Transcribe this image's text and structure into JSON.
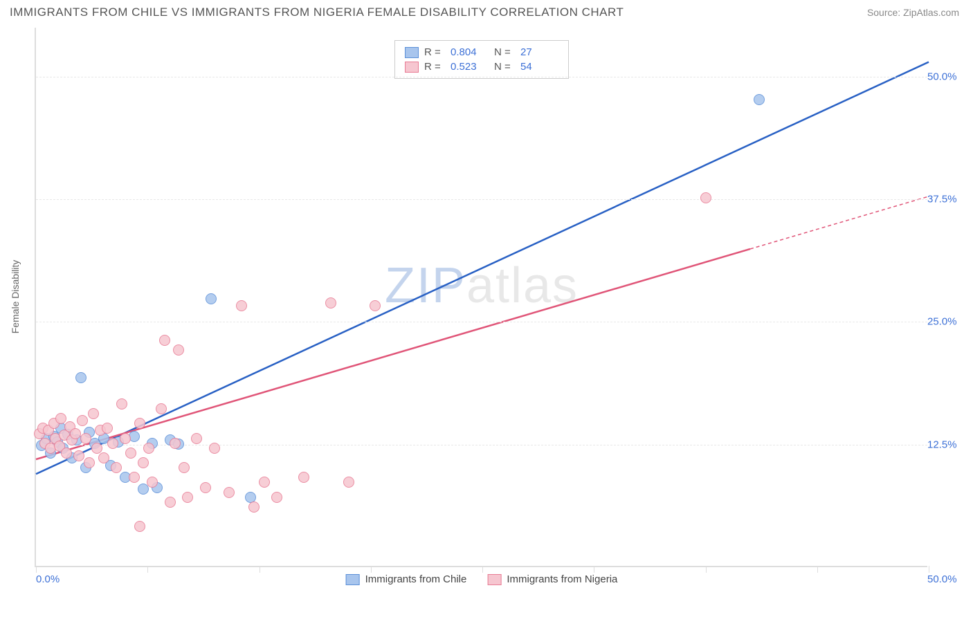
{
  "header": {
    "title": "IMMIGRANTS FROM CHILE VS IMMIGRANTS FROM NIGERIA FEMALE DISABILITY CORRELATION CHART",
    "source_prefix": "Source: ",
    "source_name": "ZipAtlas.com"
  },
  "watermark": {
    "part1": "ZIP",
    "part2": "atlas"
  },
  "chart": {
    "type": "scatter",
    "y_axis_label": "Female Disability",
    "xlim": [
      0,
      50
    ],
    "ylim": [
      0,
      55
    ],
    "x_origin_label": "0.0%",
    "x_max_label": "50.0%",
    "x_tick_positions": [
      0,
      6.25,
      12.5,
      18.75,
      25,
      31.25,
      37.5,
      43.75,
      50
    ],
    "y_gridlines": [
      {
        "value": 12.5,
        "label": "12.5%"
      },
      {
        "value": 25.0,
        "label": "25.0%"
      },
      {
        "value": 37.5,
        "label": "37.5%"
      },
      {
        "value": 50.0,
        "label": "50.0%"
      }
    ],
    "grid_color": "#e8e8e8",
    "axis_color": "#dddddd",
    "label_color": "#3b6fd6",
    "marker_radius": 8,
    "marker_border_width": 1,
    "series": [
      {
        "id": "chile",
        "name": "Immigrants from Chile",
        "fill": "#a8c5ed",
        "stroke": "#5b8fd8",
        "line_color": "#2860c4",
        "R": "0.804",
        "N": "27",
        "trend": {
          "x1": 0,
          "y1": 9.5,
          "x2": 50,
          "y2": 51.5,
          "dash_from_x": null
        },
        "points": [
          [
            0.3,
            12.3
          ],
          [
            0.6,
            13.0
          ],
          [
            0.8,
            11.5
          ],
          [
            1.0,
            13.2
          ],
          [
            1.2,
            12.6
          ],
          [
            1.4,
            14.0
          ],
          [
            1.5,
            12.0
          ],
          [
            1.8,
            13.4
          ],
          [
            2.0,
            11.0
          ],
          [
            2.3,
            12.8
          ],
          [
            2.5,
            19.2
          ],
          [
            2.8,
            10.0
          ],
          [
            3.0,
            13.6
          ],
          [
            3.3,
            12.5
          ],
          [
            3.8,
            13.0
          ],
          [
            4.2,
            10.2
          ],
          [
            4.6,
            12.6
          ],
          [
            5.0,
            9.0
          ],
          [
            5.5,
            13.2
          ],
          [
            6.0,
            7.8
          ],
          [
            6.5,
            12.5
          ],
          [
            6.8,
            8.0
          ],
          [
            7.5,
            12.8
          ],
          [
            8.0,
            12.4
          ],
          [
            9.8,
            27.2
          ],
          [
            12.0,
            7.0
          ],
          [
            40.5,
            47.5
          ]
        ]
      },
      {
        "id": "nigeria",
        "name": "Immigrants from Nigeria",
        "fill": "#f6c6d0",
        "stroke": "#e87b94",
        "line_color": "#e05578",
        "R": "0.523",
        "N": "54",
        "trend": {
          "x1": 0,
          "y1": 11.0,
          "x2": 50,
          "y2": 37.8,
          "dash_from_x": 40
        },
        "points": [
          [
            0.2,
            13.5
          ],
          [
            0.4,
            14.0
          ],
          [
            0.5,
            12.5
          ],
          [
            0.7,
            13.8
          ],
          [
            0.8,
            12.0
          ],
          [
            1.0,
            14.5
          ],
          [
            1.1,
            13.0
          ],
          [
            1.3,
            12.2
          ],
          [
            1.4,
            15.0
          ],
          [
            1.6,
            13.3
          ],
          [
            1.7,
            11.5
          ],
          [
            1.9,
            14.2
          ],
          [
            2.0,
            12.8
          ],
          [
            2.2,
            13.5
          ],
          [
            2.4,
            11.2
          ],
          [
            2.6,
            14.8
          ],
          [
            2.8,
            13.0
          ],
          [
            3.0,
            10.5
          ],
          [
            3.2,
            15.5
          ],
          [
            3.4,
            12.0
          ],
          [
            3.6,
            13.8
          ],
          [
            3.8,
            11.0
          ],
          [
            4.0,
            14.0
          ],
          [
            4.3,
            12.5
          ],
          [
            4.5,
            10.0
          ],
          [
            4.8,
            16.5
          ],
          [
            5.0,
            13.0
          ],
          [
            5.3,
            11.5
          ],
          [
            5.5,
            9.0
          ],
          [
            5.8,
            14.5
          ],
          [
            6.0,
            10.5
          ],
          [
            6.3,
            12.0
          ],
          [
            6.5,
            8.5
          ],
          [
            7.0,
            16.0
          ],
          [
            7.2,
            23.0
          ],
          [
            7.5,
            6.5
          ],
          [
            7.8,
            12.5
          ],
          [
            8.0,
            22.0
          ],
          [
            8.3,
            10.0
          ],
          [
            8.5,
            7.0
          ],
          [
            9.0,
            13.0
          ],
          [
            9.5,
            8.0
          ],
          [
            10.0,
            12.0
          ],
          [
            10.8,
            7.5
          ],
          [
            11.5,
            26.5
          ],
          [
            12.2,
            6.0
          ],
          [
            12.8,
            8.5
          ],
          [
            13.5,
            7.0
          ],
          [
            15.0,
            9.0
          ],
          [
            16.5,
            26.8
          ],
          [
            17.5,
            8.5
          ],
          [
            19.0,
            26.5
          ],
          [
            5.8,
            4.0
          ],
          [
            37.5,
            37.5
          ]
        ]
      }
    ],
    "legend_top": {
      "r_label": "R =",
      "n_label": "N ="
    }
  }
}
